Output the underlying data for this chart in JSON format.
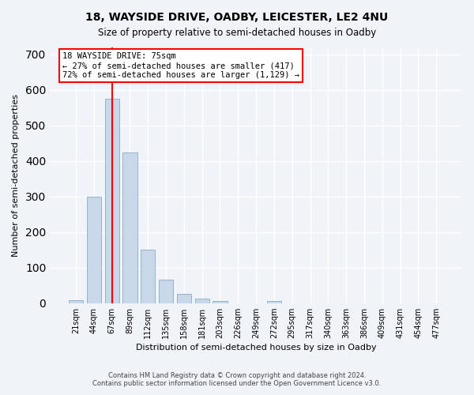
{
  "title": "18, WAYSIDE DRIVE, OADBY, LEICESTER, LE2 4NU",
  "subtitle": "Size of property relative to semi-detached houses in Oadby",
  "xlabel": "Distribution of semi-detached houses by size in Oadby",
  "ylabel": "Number of semi-detached properties",
  "bar_color": "#c8d8e8",
  "bar_edge_color": "#7aa0c0",
  "red_line_x": 75,
  "property_size": 75,
  "annotation_line1": "18 WAYSIDE DRIVE: 75sqm",
  "annotation_line2": "← 27% of semi-detached houses are smaller (417)",
  "annotation_line3": "72% of semi-detached houses are larger (1,129) →",
  "footer_line1": "Contains HM Land Registry data © Crown copyright and database right 2024.",
  "footer_line2": "Contains public sector information licensed under the Open Government Licence v3.0.",
  "bin_labels": [
    "21sqm",
    "44sqm",
    "67sqm",
    "89sqm",
    "112sqm",
    "135sqm",
    "158sqm",
    "181sqm",
    "203sqm",
    "226sqm",
    "249sqm",
    "272sqm",
    "295sqm",
    "317sqm",
    "340sqm",
    "363sqm",
    "386sqm",
    "409sqm",
    "431sqm",
    "454sqm",
    "477sqm"
  ],
  "bin_values": [
    8,
    300,
    575,
    425,
    150,
    65,
    25,
    12,
    5,
    0,
    0,
    5,
    0,
    0,
    0,
    0,
    0,
    0,
    0,
    0,
    0
  ],
  "ylim": [
    0,
    720
  ],
  "yticks": [
    0,
    100,
    200,
    300,
    400,
    500,
    600,
    700
  ],
  "background_color": "#f0f4f8",
  "grid_color": "#ffffff"
}
